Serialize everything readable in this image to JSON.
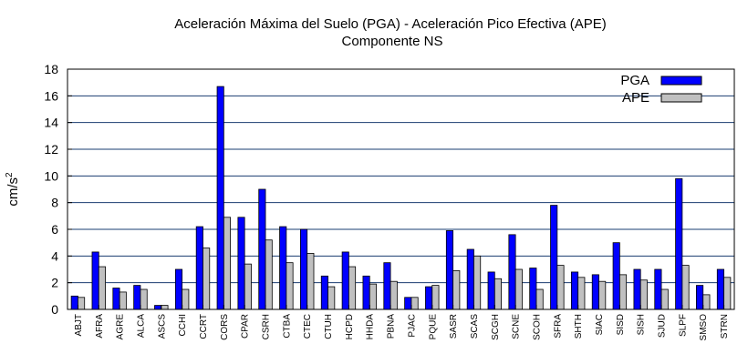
{
  "chart_data": {
    "type": "bar",
    "title": "Aceleración Máxima del Suelo (PGA) -  Aceleración Pico Efectiva (APE)",
    "subtitle": "Componente NS",
    "xlabel": "",
    "ylabel": "cm/s",
    "ylabel_superscript": "2",
    "ylim": [
      0,
      18
    ],
    "yticks": [
      0,
      2,
      4,
      6,
      8,
      10,
      12,
      14,
      16,
      18
    ],
    "grid": true,
    "legend_position": "top-right",
    "categories": [
      "ABJT",
      "AFRA",
      "AGRE",
      "ALCA",
      "ASCS",
      "CCHI",
      "CCRT",
      "CORS",
      "CPAR",
      "CSRH",
      "CTBA",
      "CTEC",
      "CTUH",
      "HCPD",
      "HHDA",
      "PBNA",
      "PJAC",
      "PQUE",
      "SASR",
      "SCAS",
      "SCGH",
      "SCNE",
      "SCOH",
      "SFRA",
      "SHTH",
      "SIAC",
      "SISD",
      "SISH",
      "SJUD",
      "SLPF",
      "SMSO",
      "STRN"
    ],
    "series": [
      {
        "name": "PGA",
        "color": "#0000ff",
        "values": [
          1.0,
          4.3,
          1.6,
          1.8,
          0.3,
          3.0,
          6.2,
          16.7,
          6.9,
          9.0,
          6.2,
          6.0,
          2.5,
          4.3,
          2.5,
          3.5,
          0.9,
          1.7,
          5.9,
          4.5,
          2.8,
          5.6,
          3.1,
          7.8,
          2.8,
          2.6,
          5.0,
          3.0,
          3.0,
          9.8,
          1.8,
          3.0
        ]
      },
      {
        "name": "APE",
        "color": "#c0c0c0",
        "values": [
          0.9,
          3.2,
          1.3,
          1.5,
          0.3,
          1.5,
          4.6,
          6.9,
          3.4,
          5.2,
          3.5,
          4.2,
          1.7,
          3.2,
          1.9,
          2.1,
          0.9,
          1.8,
          2.9,
          4.0,
          2.3,
          3.0,
          1.5,
          3.3,
          2.4,
          2.1,
          2.6,
          2.2,
          1.5,
          3.3,
          1.1,
          2.4
        ]
      }
    ]
  }
}
